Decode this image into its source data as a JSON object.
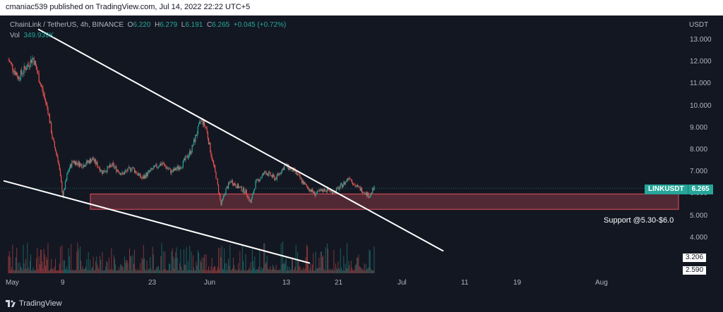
{
  "header": {
    "published": "cmaniac539 published on TradingView.com, Jul 14, 2022 22:22 UTC+5"
  },
  "legend": {
    "symbol": "ChainLink / TetherUS, 4h, BINANCE",
    "open_label": "O",
    "open": "6.220",
    "high_label": "H",
    "high": "6.279",
    "low_label": "L",
    "low": "6.191",
    "close_label": "C",
    "close": "6.265",
    "change": "+0.045 (+0.72%)",
    "vol_label": "Vol",
    "vol": "349.939K"
  },
  "price_axis": {
    "currency": "USDT",
    "ticks": [
      "13.000",
      "12.000",
      "11.000",
      "10.000",
      "9.000",
      "8.000",
      "7.000",
      "6.000",
      "5.000",
      "4.000"
    ]
  },
  "time_axis": {
    "ticks": [
      "May",
      "9",
      "23",
      "Jun",
      "13",
      "21",
      "Jul",
      "11",
      "19",
      "Aug"
    ]
  },
  "price_badge": {
    "symbol": "LINKUSDT",
    "value": "6.265"
  },
  "support": {
    "label": "Support @5.30-$6.0",
    "low": 5.3,
    "high": 6.0,
    "color": "#e05260"
  },
  "volume_boxes": [
    "3.206",
    "2.590"
  ],
  "footer": {
    "brand": "TradingView"
  },
  "colors": {
    "up": "#26a69a",
    "down": "#ef5350",
    "background": "#131722",
    "trendline": "#ffffff"
  },
  "chart_data": {
    "type": "candlestick",
    "interval": "4h",
    "ylim": [
      3.2,
      13.5
    ],
    "price_path": [
      [
        "May 1",
        12.1
      ],
      [
        "May 3",
        11.3
      ],
      [
        "May 5",
        11.9
      ],
      [
        "May 6",
        12.2
      ],
      [
        "May 7",
        11.4
      ],
      [
        "May 9",
        9.8
      ],
      [
        "May 10",
        8.4
      ],
      [
        "May 11",
        7.6
      ],
      [
        "May 12",
        5.9
      ],
      [
        "May 13",
        7.0
      ],
      [
        "May 14",
        7.5
      ],
      [
        "May 16",
        7.3
      ],
      [
        "May 18",
        7.6
      ],
      [
        "May 20",
        7.0
      ],
      [
        "May 22",
        7.3
      ],
      [
        "May 24",
        6.9
      ],
      [
        "May 26",
        7.2
      ],
      [
        "May 28",
        6.7
      ],
      [
        "May 30",
        7.1
      ],
      [
        "Jun 1",
        7.4
      ],
      [
        "Jun 3",
        7.0
      ],
      [
        "Jun 5",
        7.3
      ],
      [
        "Jun 7",
        8.0
      ],
      [
        "Jun 8",
        8.7
      ],
      [
        "Jun 9",
        9.4
      ],
      [
        "Jun 10",
        9.0
      ],
      [
        "Jun 11",
        7.8
      ],
      [
        "Jun 12",
        6.8
      ],
      [
        "Jun 13",
        5.5
      ],
      [
        "Jun 14",
        6.2
      ],
      [
        "Jun 15",
        6.6
      ],
      [
        "Jun 16",
        6.4
      ],
      [
        "Jun 18",
        6.1
      ],
      [
        "Jun 19",
        5.6
      ],
      [
        "Jun 20",
        6.5
      ],
      [
        "Jun 22",
        7.0
      ],
      [
        "Jun 24",
        6.7
      ],
      [
        "Jun 26",
        7.3
      ],
      [
        "Jun 28",
        7.0
      ],
      [
        "Jun 30",
        6.4
      ],
      [
        "Jul 2",
        6.0
      ],
      [
        "Jul 4",
        6.2
      ],
      [
        "Jul 6",
        6.1
      ],
      [
        "Jul 8",
        6.5
      ],
      [
        "Jul 9",
        6.8
      ],
      [
        "Jul 10",
        6.4
      ],
      [
        "Jul 12",
        6.1
      ],
      [
        "Jul 13",
        5.9
      ],
      [
        "Jul 14",
        6.265
      ]
    ],
    "trendlines": [
      {
        "from": [
          "May 7",
          13.5
        ],
        "to": [
          "Jul 28",
          3.4
        ]
      },
      {
        "from": [
          "Apr 30",
          6.6
        ],
        "to": [
          "Jul 1",
          2.85
        ]
      }
    ]
  }
}
